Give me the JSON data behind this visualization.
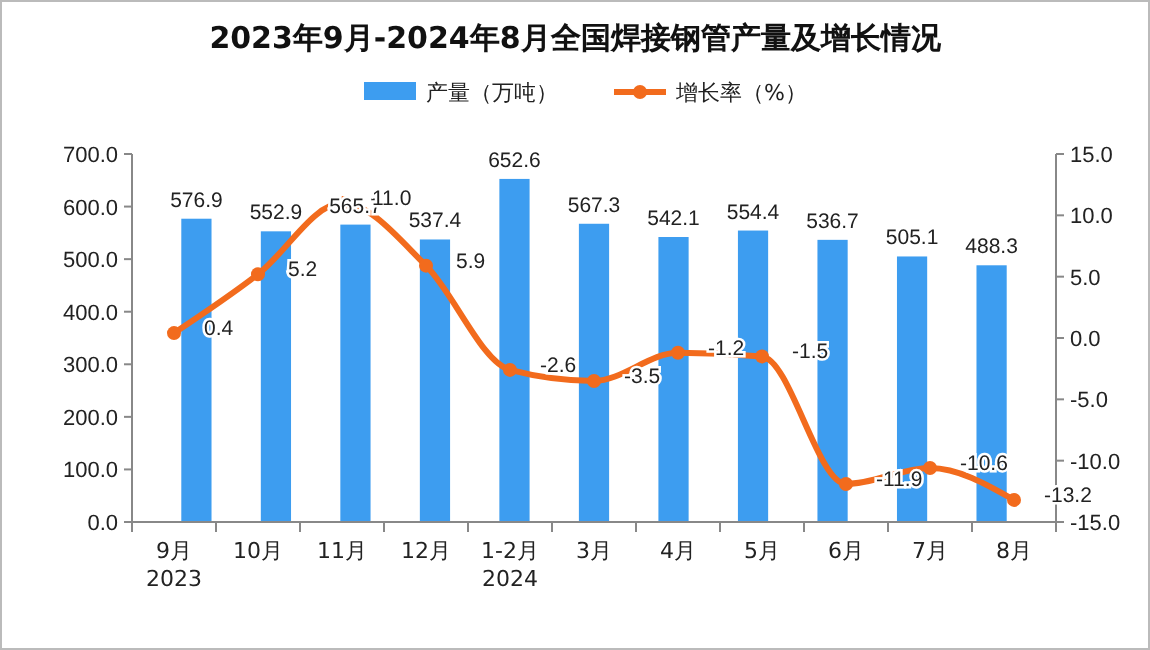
{
  "chart_data": {
    "type": "bar",
    "title": "2023年9月-2024年8月全国焊接钢管产量及增长情况",
    "categories": [
      "9月\n2023",
      "10月",
      "11月",
      "12月",
      "1-2月\n2024",
      "3月",
      "4月",
      "5月",
      "6月",
      "7月",
      "8月"
    ],
    "series": [
      {
        "name": "产量（万吨）",
        "color": "#3d9df0",
        "values": [
          576.9,
          552.9,
          565.7,
          537.4,
          652.6,
          567.3,
          542.1,
          554.4,
          536.7,
          505.1,
          488.3
        ]
      },
      {
        "name": "增长率（%）",
        "type": "line",
        "axis": "y2",
        "color": "#f26b1d",
        "values": [
          0.4,
          5.2,
          11.0,
          5.9,
          -2.6,
          -3.5,
          -1.2,
          -1.5,
          -11.9,
          -10.6,
          -13.2
        ],
        "value_labels": [
          "0.4",
          "5.2",
          "11.0",
          "5.9",
          "-2.6",
          "-3.5",
          "-1.2",
          "-1.5",
          "-11.9",
          "-10.6",
          "-13.2"
        ]
      }
    ],
    "ylim": [
      0,
      700
    ],
    "yticks": [
      {
        "value": 0,
        "label": "0.0"
      },
      {
        "value": 100,
        "label": "100.0"
      },
      {
        "value": 200,
        "label": "200.0"
      },
      {
        "value": 300,
        "label": "300.0"
      },
      {
        "value": 400,
        "label": "400.0"
      },
      {
        "value": 500,
        "label": "500.0"
      },
      {
        "value": 600,
        "label": "600.0"
      },
      {
        "value": 700,
        "label": "700.0"
      }
    ],
    "y2lim": [
      -15,
      15
    ],
    "y2ticks": [
      {
        "value": -15,
        "label": "-15.0"
      },
      {
        "value": -10,
        "label": "-10.0"
      },
      {
        "value": -5,
        "label": "-5.0"
      },
      {
        "value": 0,
        "label": "0.0"
      },
      {
        "value": 5,
        "label": "5.0"
      },
      {
        "value": 10,
        "label": "10.0"
      },
      {
        "value": 15,
        "label": "15.0"
      }
    ],
    "data_labels": true,
    "legend": "top",
    "grid": false,
    "marker": "circle",
    "line_style": "solid"
  }
}
